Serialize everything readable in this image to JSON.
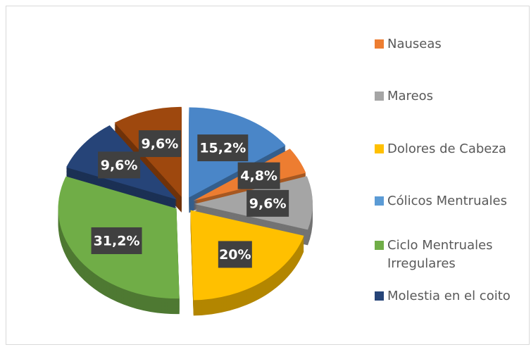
{
  "chart_data": {
    "type": "pie3d",
    "categories": [
      "Cólicos Mentruales",
      "Nauseas",
      "Mareos",
      "Dolores de Cabeza",
      "Ciclo Mentruales Irregulares",
      "Molestia en el coito",
      null
    ],
    "values": [
      15.2,
      4.8,
      9.6,
      20,
      31.2,
      9.6,
      9.6
    ],
    "value_labels": [
      "15,2%",
      "4,8%",
      "9,6%",
      "20%",
      "31,2%",
      "9,6%",
      "9,6%"
    ],
    "colors": [
      "#4a86c8",
      "#ed7d31",
      "#a5a5a5",
      "#ffc000",
      "#70ad47",
      "#264478",
      "#9e480e"
    ],
    "legend_colors": [
      "#5b9bd5",
      "#ed7d31",
      "#a5a5a5",
      "#ffc000",
      "#70ad47",
      "#264478",
      "#9e480e"
    ]
  }
}
